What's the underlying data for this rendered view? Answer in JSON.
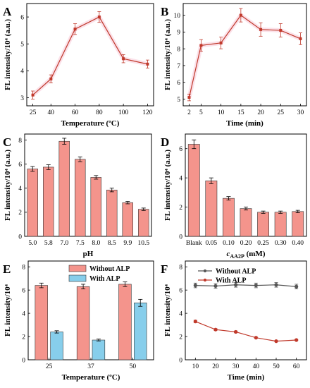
{
  "chart_data": [
    {
      "panel": "A",
      "type": "line",
      "xlabel": "Temperature (ºC)",
      "ylabel": "FL intensity/10⁴ (a.u.)",
      "x": [
        25,
        40,
        60,
        80,
        100,
        120
      ],
      "xticks": [
        "25",
        "40",
        "60",
        "80",
        "100",
        "120"
      ],
      "xlim": [
        20,
        125
      ],
      "y": [
        3.1,
        3.7,
        5.55,
        6.0,
        4.45,
        4.25
      ],
      "err": [
        0.15,
        0.15,
        0.2,
        0.2,
        0.15,
        0.15
      ],
      "ylim": [
        2.7,
        6.5
      ],
      "yticks": [
        "3",
        "4",
        "5",
        "6"
      ],
      "color": "#c0392b",
      "halo": "#f3a8c0"
    },
    {
      "panel": "B",
      "type": "line",
      "xlabel": "Time (min)",
      "ylabel": "FL intensity/10⁴ (a.u.)",
      "x": [
        2,
        5,
        10,
        15,
        20,
        25,
        30
      ],
      "xticks": [
        "2",
        "5",
        "10",
        "15",
        "20",
        "25",
        "30"
      ],
      "xlim": [
        0.5,
        31.5
      ],
      "y": [
        5.1,
        8.2,
        8.35,
        10.0,
        9.15,
        9.1,
        8.6
      ],
      "err": [
        0.2,
        0.35,
        0.35,
        0.4,
        0.4,
        0.4,
        0.35
      ],
      "ylim": [
        4.6,
        10.7
      ],
      "yticks": [
        "5",
        "6",
        "7",
        "8",
        "9",
        "10"
      ],
      "color": "#c0392b",
      "halo": "#f3a8c0"
    },
    {
      "panel": "C",
      "type": "bar",
      "xlabel": "pH",
      "ylabel": "FL intensity/10⁴ (a.u.)",
      "categories": [
        "5.0",
        "5.8",
        "7.0",
        "7.5",
        "8.0",
        "8.5",
        "9.9",
        "10.5"
      ],
      "values": [
        5.6,
        5.75,
        7.9,
        6.4,
        4.9,
        3.85,
        2.8,
        2.25
      ],
      "err": [
        0.2,
        0.2,
        0.25,
        0.2,
        0.15,
        0.15,
        0.1,
        0.1
      ],
      "ylim": [
        0,
        8.5
      ],
      "yticks": [
        "0",
        "2",
        "4",
        "6",
        "8"
      ],
      "color": "#f4948c"
    },
    {
      "panel": "D",
      "type": "bar",
      "xlabel": "c",
      "xlabel_sub": "AA2P",
      "xlabel_unit": " (mM)",
      "ylabel": "FL intensity/10⁴ (a.u.)",
      "categories": [
        "Blank",
        "0.05",
        "0.10",
        "0.20",
        "0.25",
        "0.30",
        "0.40"
      ],
      "values": [
        6.3,
        3.8,
        2.6,
        1.9,
        1.65,
        1.65,
        1.7
      ],
      "err": [
        0.3,
        0.2,
        0.12,
        0.1,
        0.08,
        0.08,
        0.08
      ],
      "ylim": [
        0,
        7
      ],
      "yticks": [
        "0",
        "2",
        "4",
        "6"
      ],
      "color": "#f4948c"
    },
    {
      "panel": "E",
      "type": "bar",
      "xlabel": "Temperature (ºC)",
      "ylabel": "FL intensity/10⁴",
      "categories": [
        "25",
        "37",
        "50"
      ],
      "series": [
        {
          "name": "Without ALP",
          "values": [
            6.4,
            6.3,
            6.5
          ],
          "err": [
            0.2,
            0.2,
            0.2
          ],
          "color": "#f4948c"
        },
        {
          "name": "With ALP",
          "values": [
            2.4,
            1.7,
            4.9
          ],
          "err": [
            0.1,
            0.08,
            0.3
          ],
          "color": "#87ceeb"
        }
      ],
      "ylim": [
        0,
        8.5
      ],
      "yticks": [
        "0",
        "2",
        "4",
        "6",
        "8"
      ]
    },
    {
      "panel": "F",
      "type": "line",
      "xlabel": "Time (min)",
      "ylabel": "FL intensity/10⁴",
      "x": [
        10,
        20,
        30,
        40,
        50,
        60
      ],
      "xticks": [
        "10",
        "20",
        "30",
        "40",
        "50",
        "60"
      ],
      "xlim": [
        5,
        65
      ],
      "series": [
        {
          "name": "Without ALP",
          "values": [
            6.4,
            6.35,
            6.45,
            6.4,
            6.45,
            6.3
          ],
          "err": [
            0.2,
            0.2,
            0.2,
            0.2,
            0.2,
            0.2
          ],
          "color": "#555555"
        },
        {
          "name": "With ALP",
          "values": [
            3.3,
            2.6,
            2.4,
            1.9,
            1.6,
            1.7
          ],
          "err": [
            0.1,
            0.08,
            0.08,
            0.06,
            0.05,
            0.05
          ],
          "color": "#c0392b"
        }
      ],
      "ylim": [
        0,
        8.5
      ],
      "yticks": [
        "0",
        "2",
        "4",
        "6",
        "8"
      ]
    }
  ]
}
